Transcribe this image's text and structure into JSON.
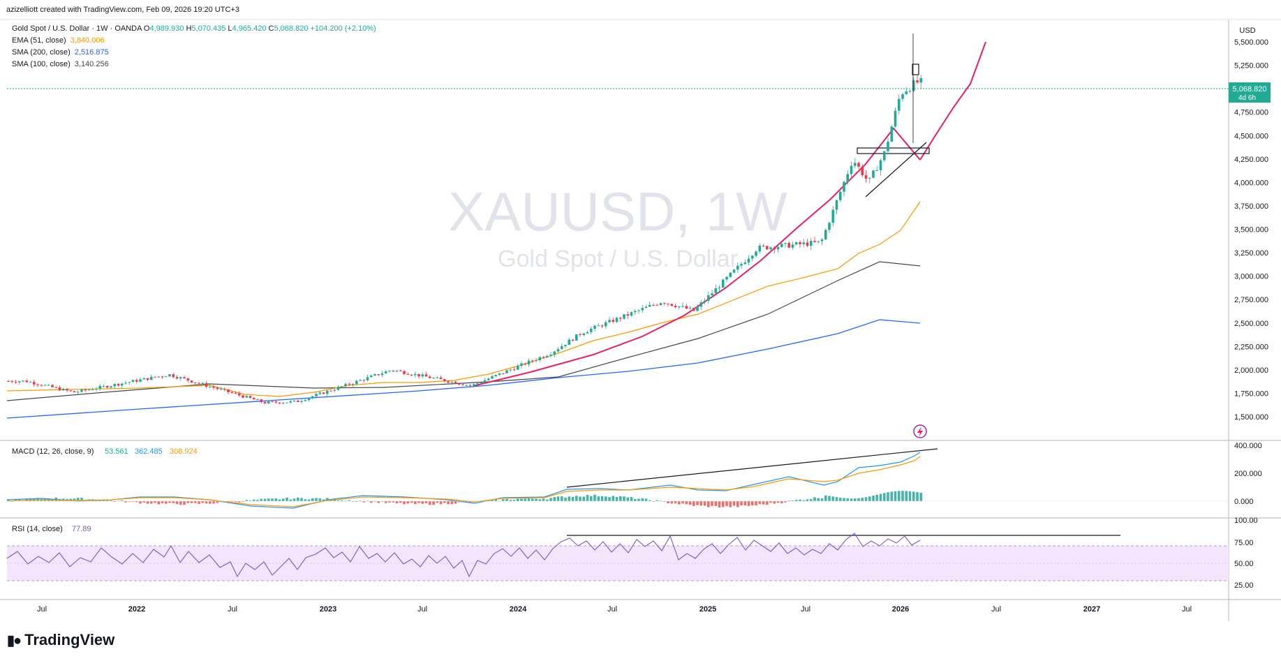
{
  "header": {
    "author_line": "azizelliott created with TradingView.com, Feb 09, 2026 19:20 UTC+3"
  },
  "legend": {
    "symbol_line": "Gold Spot / U.S. Dollar · 1W · OANDA",
    "o_label": "O",
    "o_value": "4,989.930",
    "h_label": "H",
    "h_value": "5,070.435",
    "l_label": "L",
    "l_value": "4,965.420",
    "c_label": "C",
    "c_value": "5,068.820",
    "change": "+104.200 (+2.10%)",
    "indicators": [
      {
        "label": "EMA (51, close)",
        "value": "3,840.006",
        "color": "#ff9800"
      },
      {
        "label": "SMA (200, close)",
        "value": "2,516.875",
        "color": "#2962ff"
      },
      {
        "label": "SMA (100, close)",
        "value": "3,140.256",
        "color": "#131722"
      }
    ]
  },
  "watermark": {
    "symbol": "XAUUSD, 1W",
    "name": "Gold Spot / U.S. Dollar"
  },
  "price_axis": {
    "currency": "USD",
    "ticks": [
      "5,500.000",
      "5,250.000",
      "4,750.000",
      "4,500.000",
      "4,250.000",
      "4,000.000",
      "3,750.000",
      "3,500.000",
      "3,250.000",
      "3,000.000",
      "2,750.000",
      "2,500.000",
      "2,250.000",
      "2,000.000",
      "1,750.000",
      "1,500.000"
    ],
    "last_price": "5,068.820",
    "countdown": "4d 6h"
  },
  "macd": {
    "label": "MACD (12, 26, close, 9)",
    "hist": "53.561",
    "macd": "362.485",
    "signal": "308.924",
    "ticks": [
      "400.000",
      "200.000",
      "0.000"
    ]
  },
  "rsi": {
    "label": "RSI (14, close)",
    "value": "77.89",
    "ticks": [
      "100.00",
      "75.00",
      "50.00",
      "25.00"
    ]
  },
  "time_axis": {
    "labels": [
      "Jul",
      "2022",
      "Jul",
      "2023",
      "Jul",
      "2024",
      "Jul",
      "2025",
      "Jul",
      "2026",
      "Jul",
      "2027",
      "Jul"
    ]
  },
  "brand": {
    "name": "TradingView"
  },
  "colors": {
    "up": "#22ab94",
    "down": "#f23645",
    "ema51": "#ff9800",
    "sma200": "#2962ff",
    "sma100": "#434651",
    "curve": "#e91e63",
    "macd_line": "#2196f3",
    "signal_line": "#ff9800",
    "rsi_line": "#7e57c2",
    "rsi_band": "#f3e5fb"
  },
  "chart_data": {
    "type": "candlestick",
    "timeframe": "1W",
    "price_range": [
      1300,
      5700
    ],
    "last_close": 5068.82,
    "key_points": [
      {
        "date": "2021-06",
        "close": 1880
      },
      {
        "date": "2021-09",
        "close": 1760
      },
      {
        "date": "2022-03",
        "close": 1950
      },
      {
        "date": "2022-09",
        "close": 1650
      },
      {
        "date": "2022-11",
        "close": 1660
      },
      {
        "date": "2023-05",
        "close": 2000
      },
      {
        "date": "2023-10",
        "close": 1830
      },
      {
        "date": "2024-03",
        "close": 2180
      },
      {
        "date": "2024-05",
        "close": 2400
      },
      {
        "date": "2024-10",
        "close": 2730
      },
      {
        "date": "2024-12",
        "close": 2630
      },
      {
        "date": "2025-04",
        "close": 3300
      },
      {
        "date": "2025-08",
        "close": 3360
      },
      {
        "date": "2025-10",
        "close": 4250
      },
      {
        "date": "2025-11",
        "close": 4000
      },
      {
        "date": "2025-12",
        "close": 4320
      },
      {
        "date": "2026-01",
        "close": 4950
      },
      {
        "date": "2026-02",
        "close": 5068.82
      }
    ],
    "ema51_last": 3840.006,
    "sma200_last": 2516.875,
    "sma100_last": 3140.256,
    "macd_last": {
      "histogram": 53.561,
      "macd": 362.485,
      "signal": 308.924
    },
    "rsi_last": 77.89,
    "rsi_levels": [
      70,
      30
    ],
    "x_ticks": [
      "Jul",
      "2022",
      "Jul",
      "2023",
      "Jul",
      "2024",
      "Jul",
      "2025",
      "Jul",
      "2026",
      "Jul",
      "2027",
      "Jul"
    ]
  }
}
